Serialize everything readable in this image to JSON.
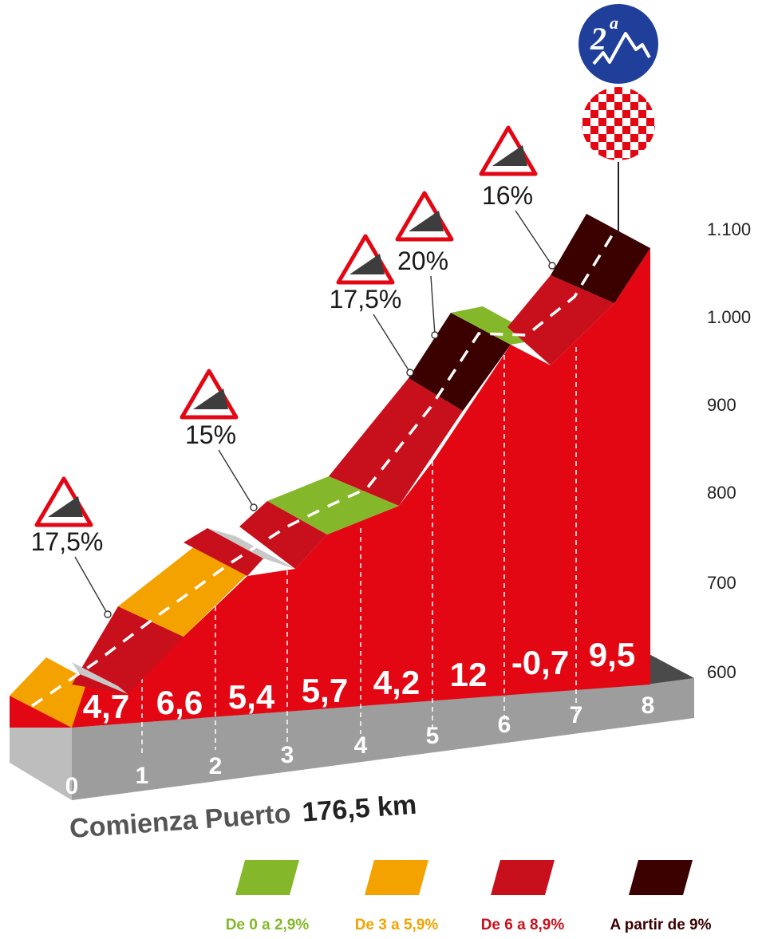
{
  "category": {
    "number": "2",
    "superscript": "a"
  },
  "start": {
    "prefix": "Comienza Puerto",
    "distance": "176,5 km"
  },
  "colors": {
    "green": "#84b82a",
    "orange": "#f4a200",
    "red": "#c8101c",
    "dark": "#3b0000",
    "body": "#e30613",
    "base": "#9d9d9d"
  },
  "chart_data": {
    "type": "area",
    "km_ticks": [
      "0",
      "1",
      "2",
      "3",
      "4",
      "5",
      "6",
      "7",
      "8"
    ],
    "segment_gradients": [
      "4,7",
      "6,6",
      "5,4",
      "5,7",
      "4,2",
      "12",
      "-0,7",
      "9,5"
    ],
    "altitude_ticks": [
      "600",
      "700",
      "800",
      "900",
      "1.000",
      "1.100"
    ],
    "max_ramps": [
      "17,5%",
      "15%",
      "17,5%",
      "20%",
      "16%"
    ],
    "legend": [
      {
        "label": "De 0 a 2,9%",
        "color": "#84b82a"
      },
      {
        "label": "De 3 a 5,9%",
        "color": "#f4a200"
      },
      {
        "label": "De 6 a 8,9%",
        "color": "#c8101c"
      },
      {
        "label": "A partir de 9%",
        "color": "#3b0000"
      }
    ]
  }
}
